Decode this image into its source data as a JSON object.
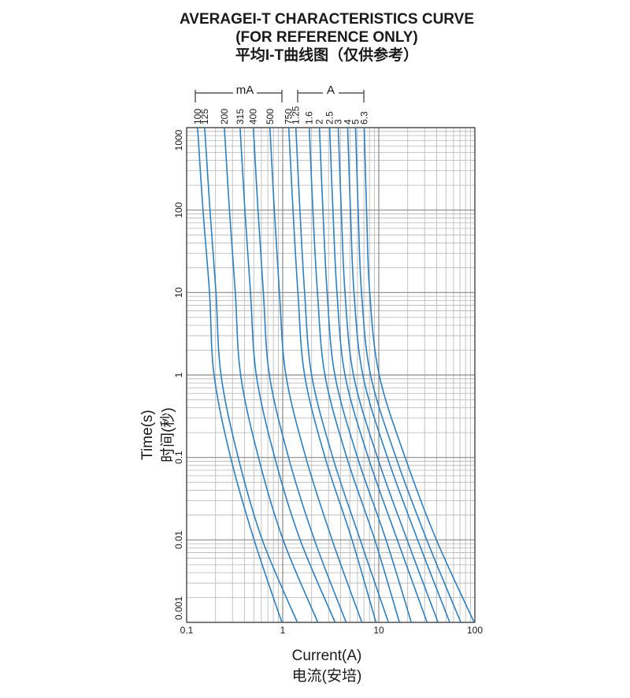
{
  "chart_data": {
    "type": "line",
    "title": [
      "AVERAGEI-T CHARACTERISTICS CURVE",
      "(FOR REFERENCE ONLY)",
      "平均I-T曲线图（仅供参考）"
    ],
    "annotations": [
      "mA",
      "A"
    ],
    "xlabel": [
      "Current(A)",
      "电流(安培)"
    ],
    "ylabel": [
      "Time(s)",
      "时间(秒)"
    ],
    "xscale": "log",
    "yscale": "log",
    "xlim": [
      0.1,
      100
    ],
    "ylim": [
      0.001,
      1000
    ],
    "xticks": [
      0.1,
      1,
      10,
      100
    ],
    "yticks": [
      0.001,
      0.01,
      0.1,
      1,
      10,
      100,
      1000
    ],
    "grid": true,
    "minor_grid": true,
    "color": "#2b80c4",
    "series": [
      {
        "name": "100",
        "x": [
          0.13,
          0.148,
          0.173,
          0.193,
          0.287,
          0.504,
          0.98
        ],
        "values": [
          1000,
          100,
          10,
          1,
          0.1,
          0.01,
          0.001
        ]
      },
      {
        "name": "125",
        "x": [
          0.154,
          0.175,
          0.202,
          0.228,
          0.344,
          0.613,
          1.42
        ],
        "values": [
          1000,
          100,
          10,
          1,
          0.1,
          0.01,
          0.001
        ]
      },
      {
        "name": "200",
        "x": [
          0.247,
          0.279,
          0.321,
          0.365,
          0.559,
          1.01,
          2.32
        ],
        "values": [
          1000,
          100,
          10,
          1,
          0.1,
          0.01,
          0.001
        ]
      },
      {
        "name": "315",
        "x": [
          0.36,
          0.404,
          0.462,
          0.531,
          0.826,
          1.52,
          3.51
        ],
        "values": [
          1000,
          100,
          10,
          1,
          0.1,
          0.01,
          0.001
        ]
      },
      {
        "name": "400",
        "x": [
          0.495,
          0.553,
          0.629,
          0.727,
          1.15,
          2.14,
          4.57
        ],
        "values": [
          1000,
          100,
          10,
          1,
          0.1,
          0.01,
          0.001
        ]
      },
      {
        "name": "500",
        "x": [
          0.736,
          0.818,
          0.924,
          1.08,
          1.74,
          3.27,
          6.66
        ],
        "values": [
          1000,
          100,
          10,
          1,
          0.1,
          0.01,
          0.001
        ]
      },
      {
        "name": "750",
        "x": [
          1.156,
          1.28,
          1.44,
          1.69,
          2.76,
          5.27,
          9.35
        ],
        "values": [
          1000,
          100,
          10,
          1,
          0.1,
          0.01,
          0.001
        ]
      },
      {
        "name": "1.25",
        "x": [
          1.37,
          1.51,
          1.69,
          2.0,
          3.32,
          6.41,
          12.6
        ],
        "values": [
          1000,
          100,
          10,
          1,
          0.1,
          0.01,
          0.001
        ]
      },
      {
        "name": "1.6",
        "x": [
          1.89,
          2.06,
          2.3,
          2.75,
          4.64,
          9.09,
          16.4
        ],
        "values": [
          1000,
          100,
          10,
          1,
          0.1,
          0.01,
          0.001
        ]
      },
      {
        "name": "2",
        "x": [
          2.41,
          2.62,
          2.9,
          3.49,
          6.0,
          11.9,
          21.8
        ],
        "values": [
          1000,
          100,
          10,
          1,
          0.1,
          0.01,
          0.001
        ]
      },
      {
        "name": "2.5",
        "x": [
          3.08,
          3.33,
          3.67,
          4.45,
          7.77,
          15.6,
          31.8
        ],
        "values": [
          1000,
          100,
          10,
          1,
          0.1,
          0.01,
          0.001
        ]
      },
      {
        "name": "3",
        "x": [
          3.78,
          4.07,
          4.45,
          5.45,
          9.68,
          19.7,
          41.4
        ],
        "values": [
          1000,
          100,
          10,
          1,
          0.1,
          0.01,
          0.001
        ]
      },
      {
        "name": "4",
        "x": [
          4.74,
          5.07,
          5.52,
          6.82,
          12.3,
          25.4,
          54.8
        ],
        "values": [
          1000,
          100,
          10,
          1,
          0.1,
          0.01,
          0.001
        ]
      },
      {
        "name": "5",
        "x": [
          5.73,
          6.1,
          6.61,
          8.21,
          15.1,
          31.6,
          71.4
        ],
        "values": [
          1000,
          100,
          10,
          1,
          0.1,
          0.01,
          0.001
        ]
      },
      {
        "name": "6.3",
        "x": [
          7.05,
          7.46,
          8.04,
          10.1,
          18.8,
          39.8,
          98.4
        ],
        "values": [
          1000,
          100,
          10,
          1,
          0.1,
          0.01,
          0.001
        ]
      }
    ]
  }
}
